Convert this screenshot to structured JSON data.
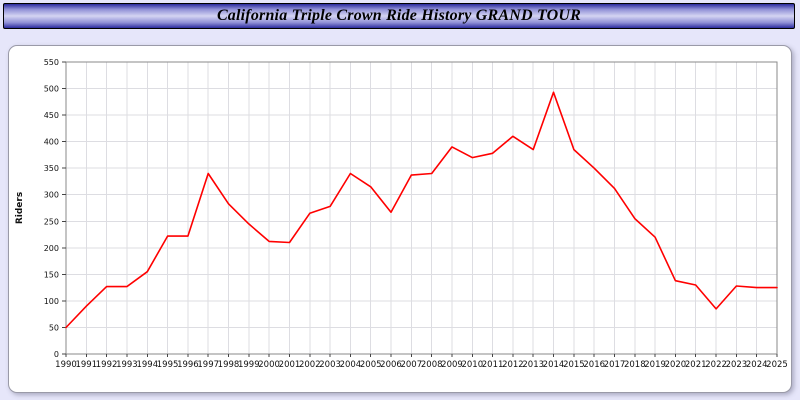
{
  "header": {
    "title": "California Triple Crown Ride History GRAND TOUR"
  },
  "chart_data": {
    "type": "line",
    "title": "California Triple Crown Ride History GRAND TOUR",
    "xlabel": "",
    "ylabel": "Riders",
    "ylim": [
      0,
      550
    ],
    "ytick_step": 50,
    "grid": true,
    "legend_position": "none",
    "line_color": "#ff0000",
    "x": [
      1990,
      1991,
      1992,
      1993,
      1994,
      1995,
      1996,
      1997,
      1998,
      1999,
      2000,
      2001,
      2002,
      2003,
      2004,
      2005,
      2006,
      2007,
      2008,
      2009,
      2010,
      2011,
      2012,
      2013,
      2014,
      2015,
      2016,
      2017,
      2018,
      2019,
      2020,
      2021,
      2022,
      2023,
      2024,
      2025
    ],
    "values": [
      50,
      90,
      127,
      127,
      155,
      222,
      222,
      340,
      283,
      245,
      212,
      210,
      265,
      278,
      340,
      315,
      267,
      337,
      340,
      390,
      370,
      378,
      410,
      385,
      493,
      385,
      350,
      312,
      255,
      220,
      138,
      130,
      85,
      128,
      125,
      125
    ]
  }
}
